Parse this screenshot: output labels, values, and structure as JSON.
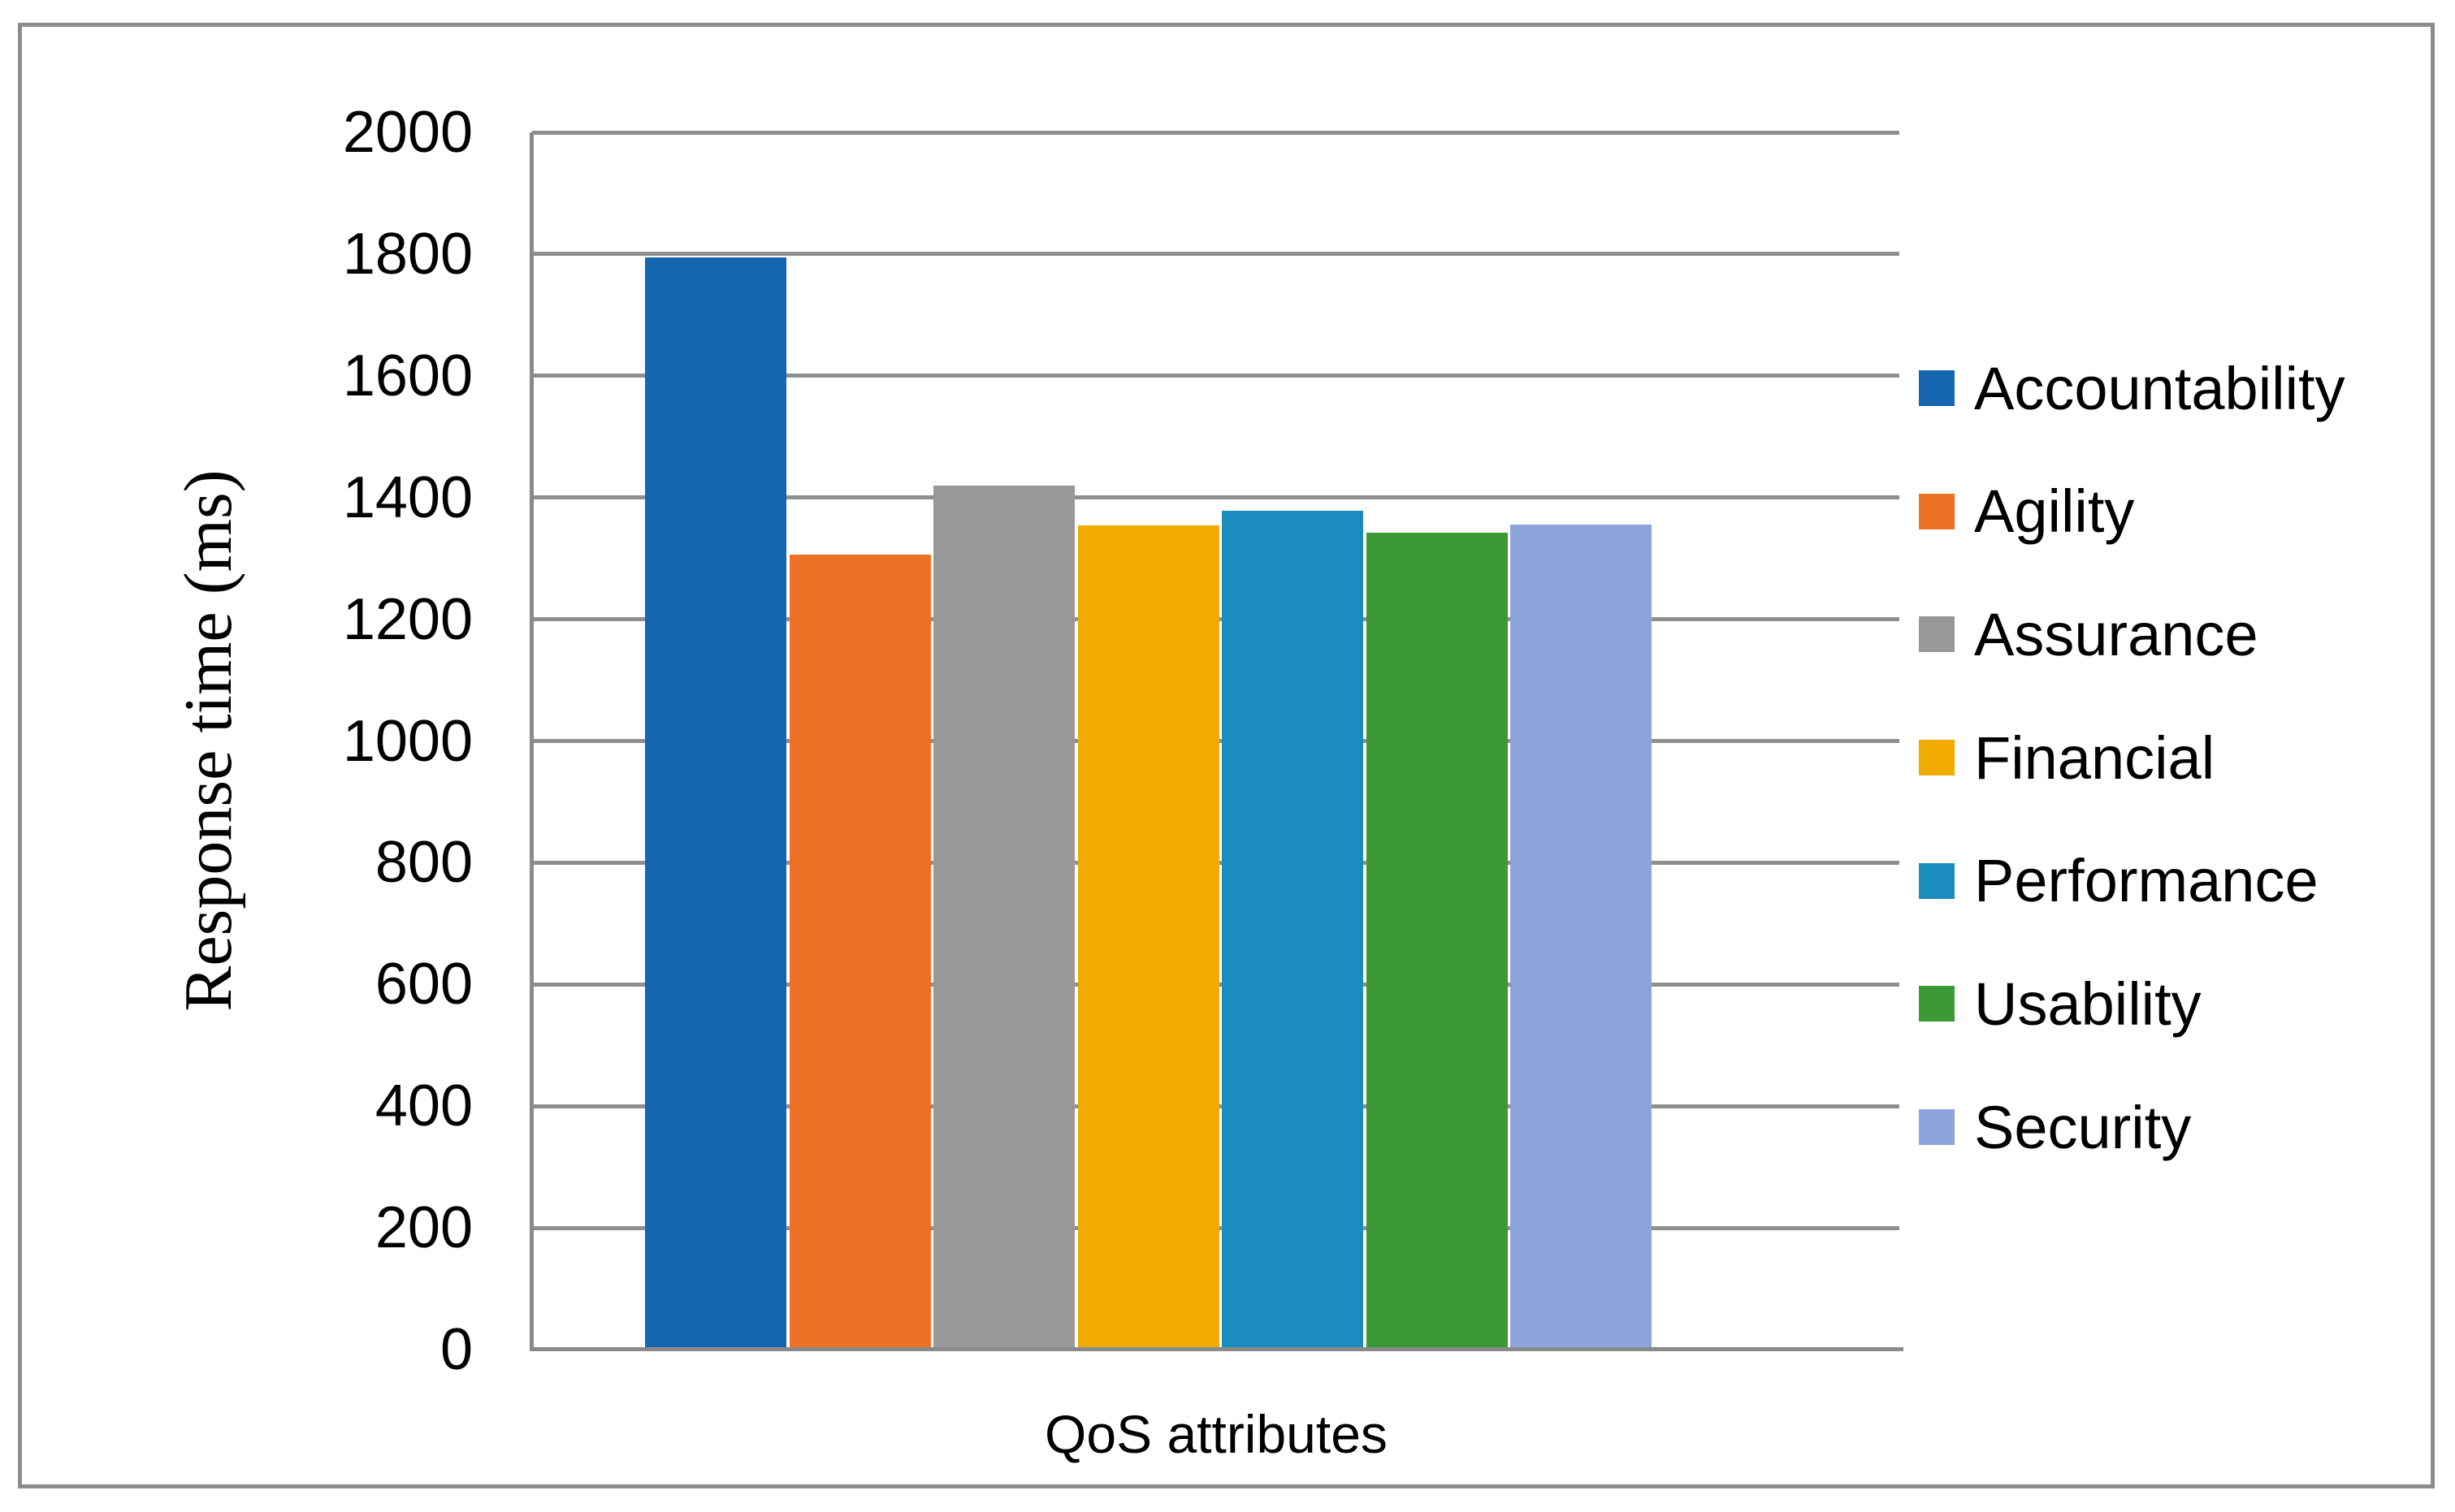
{
  "chart_data": {
    "type": "bar",
    "title": "",
    "xlabel": "QoS attributes",
    "ylabel": "Response time (ms)",
    "ylim": [
      0,
      2000
    ],
    "ytick_step": 200,
    "yticks": [
      0,
      200,
      400,
      600,
      800,
      1000,
      1200,
      1400,
      1600,
      1800,
      2000
    ],
    "categories": [
      "Accountability",
      "Agility",
      "Assurance",
      "Financial",
      "Performance",
      "Usability",
      "Security"
    ],
    "series": [
      {
        "name": "Response time (ms)",
        "values": [
          1795,
          1306,
          1419,
          1354,
          1378,
          1342,
          1356
        ]
      }
    ],
    "bar_colors": [
      "#1565B1",
      "#EC7124",
      "#989898",
      "#F1AB00",
      "#1A8CBE",
      "#3B9A34",
      "#8CA4DB"
    ],
    "legend": [
      "Accountability",
      "Agility",
      "Assurance",
      "Financial",
      "Performance",
      "Usability",
      "Security"
    ],
    "legend_position": "right",
    "grid": "horizontal",
    "gridline_color": "#8F8F8F",
    "axis_color": "#8A8A8A",
    "frame_border_color": "#8C8C8C",
    "background_color": "#FFFFFF"
  }
}
